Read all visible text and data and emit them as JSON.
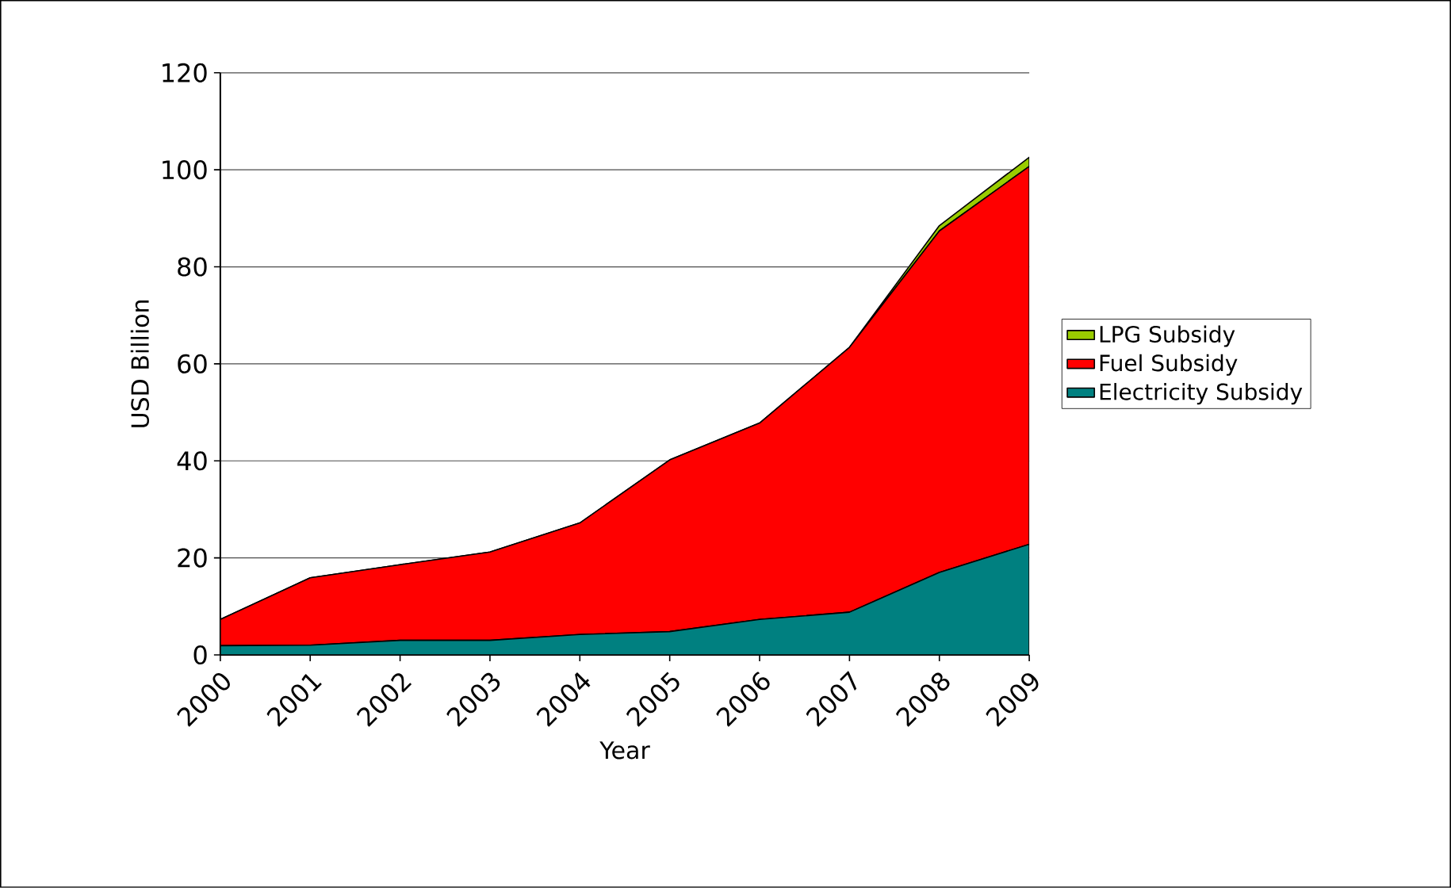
{
  "chart_data": {
    "type": "area",
    "xlabel": "Year",
    "ylabel": "USD Billion",
    "stacked": true,
    "grid": "y",
    "legend": "right",
    "categories": [
      "2000",
      "2001",
      "2002",
      "2003",
      "2004",
      "2005",
      "2006",
      "2007",
      "2008",
      "2009"
    ],
    "ylim": [
      0,
      120
    ],
    "yticks": [
      0,
      20,
      40,
      60,
      80,
      100,
      120
    ],
    "series": [
      {
        "name": "Electricity Subsidy",
        "color": "#008080",
        "values": [
          1.9,
          2,
          3,
          3,
          4.2,
          4.8,
          7.3,
          8.8,
          17,
          22.8
        ]
      },
      {
        "name": "Fuel Subsidy",
        "color": "#ff0000",
        "values": [
          5.4,
          13.9,
          15.6,
          18.2,
          23,
          35.4,
          40.5,
          54.6,
          70.4,
          77.9
        ]
      },
      {
        "name": "LPG Subsidy",
        "color": "#99cc00",
        "values": [
          0,
          0,
          0,
          0,
          0,
          0,
          0,
          0,
          1.1,
          1.9
        ]
      }
    ]
  }
}
